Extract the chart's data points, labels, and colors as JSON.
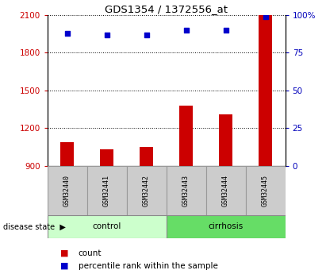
{
  "title": "GDS1354 / 1372556_at",
  "samples": [
    "GSM32440",
    "GSM32441",
    "GSM32442",
    "GSM32443",
    "GSM32444",
    "GSM32445"
  ],
  "bar_values": [
    1090,
    1030,
    1050,
    1380,
    1310,
    2100
  ],
  "dot_values_pct": [
    88,
    87,
    87,
    90,
    90,
    99
  ],
  "y_min": 900,
  "y_max": 2100,
  "y_ticks": [
    900,
    1200,
    1500,
    1800,
    2100
  ],
  "y2_ticks": [
    0,
    25,
    50,
    75,
    100
  ],
  "bar_color": "#cc0000",
  "dot_color": "#0000cc",
  "control_color": "#ccffcc",
  "cirrhosis_color": "#66dd66",
  "sample_box_color": "#cccccc",
  "tick_color_left": "#cc0000",
  "tick_color_right": "#0000bb",
  "legend_count_label": "count",
  "legend_pct_label": "percentile rank within the sample",
  "group_label": "disease state",
  "bar_width": 0.35,
  "fig_width": 4.11,
  "fig_height": 3.45,
  "dpi": 100
}
